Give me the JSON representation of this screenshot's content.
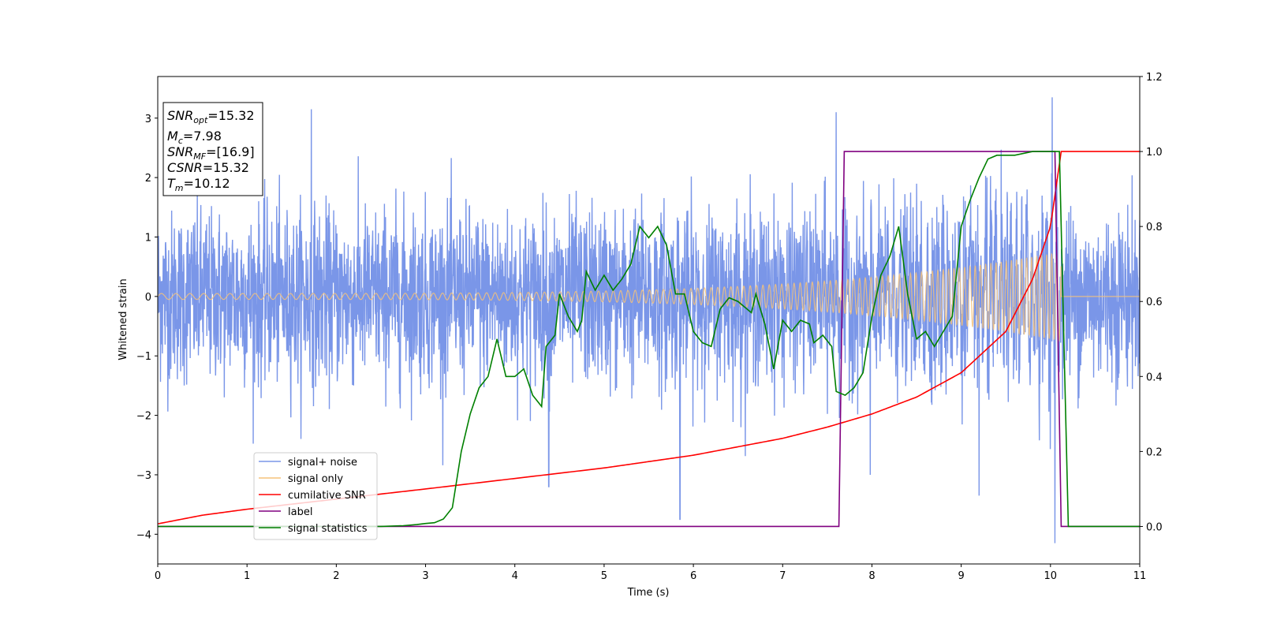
{
  "chart_data": {
    "type": "line",
    "title": "",
    "xlabel": "Time (s)",
    "ylabel": "Whitened strain",
    "xlim": [
      0,
      11
    ],
    "ylim": [
      -4.5,
      3.7
    ],
    "y2lim": [
      -0.1,
      1.2
    ],
    "x_ticks": [
      "0",
      "1",
      "2",
      "3",
      "4",
      "5",
      "6",
      "7",
      "8",
      "9",
      "10",
      "11"
    ],
    "y_ticks": [
      "−4",
      "−3",
      "−2",
      "−1",
      "0",
      "1",
      "2",
      "3"
    ],
    "y2_ticks": [
      "0.0",
      "0.2",
      "0.4",
      "0.6",
      "0.8",
      "1.0",
      "1.2"
    ],
    "grid": false,
    "legend_position": "lower-left",
    "info_box": {
      "snr_opt": {
        "base": "SNR",
        "sub": "opt",
        "value": "=15.32"
      },
      "mc": {
        "base": "M",
        "sub": "c",
        "value": "=7.98"
      },
      "snr_mf": {
        "base": "SNR",
        "sub": "MF",
        "value": "=[16.9]"
      },
      "csnr": {
        "base": "CSNR",
        "value": "=15.32"
      },
      "tm": {
        "base": "T",
        "sub": "m",
        "value": "=10.12"
      }
    },
    "series": [
      {
        "name": "signal+ noise",
        "axis": "left",
        "color": "#7a96e8",
        "description_points": "dense noise, amplitude roughly ±1.7 with spikes to ±3.3",
        "noise_amplitude": 1.0,
        "peaks": [
          [
            1.72,
            3.15
          ],
          [
            7.6,
            3.1
          ],
          [
            10.02,
            3.35
          ],
          [
            10.05,
            -4.15
          ],
          [
            5.85,
            -3.75
          ],
          [
            7.98,
            -3.0
          ],
          [
            9.2,
            -3.35
          ],
          [
            4.38,
            -3.2
          ]
        ]
      },
      {
        "name": "signal only",
        "axis": "left",
        "color": "#f5c27a",
        "chirp_start": 0,
        "chirp_end": 10.12,
        "amp_start": 0.05,
        "amp_end": 0.75
      },
      {
        "name": "cumilative SNR",
        "axis": "right",
        "color": "#ff0000",
        "points": [
          [
            0,
            0.007
          ],
          [
            0.5,
            0.03
          ],
          [
            1,
            0.046
          ],
          [
            2,
            0.073
          ],
          [
            3,
            0.1
          ],
          [
            4,
            0.128
          ],
          [
            5,
            0.156
          ],
          [
            6,
            0.19
          ],
          [
            7,
            0.235
          ],
          [
            7.5,
            0.265
          ],
          [
            8,
            0.3
          ],
          [
            8.5,
            0.345
          ],
          [
            9,
            0.41
          ],
          [
            9.5,
            0.52
          ],
          [
            9.8,
            0.66
          ],
          [
            10,
            0.8
          ],
          [
            10.12,
            1.0
          ],
          [
            11,
            1.0
          ]
        ]
      },
      {
        "name": "label",
        "axis": "right",
        "color": "#800080",
        "points": [
          [
            0,
            0.0
          ],
          [
            7.63,
            0.0
          ],
          [
            7.69,
            1.0
          ],
          [
            10.05,
            1.0
          ],
          [
            10.12,
            0.0
          ],
          [
            11,
            0.0
          ]
        ]
      },
      {
        "name": "signal statistics",
        "axis": "right",
        "color": "#008000",
        "points": [
          [
            0,
            0.0
          ],
          [
            2.5,
            0.0
          ],
          [
            2.75,
            0.002
          ],
          [
            2.9,
            0.005
          ],
          [
            3.0,
            0.008
          ],
          [
            3.1,
            0.01
          ],
          [
            3.2,
            0.02
          ],
          [
            3.3,
            0.05
          ],
          [
            3.4,
            0.2
          ],
          [
            3.5,
            0.3
          ],
          [
            3.6,
            0.37
          ],
          [
            3.7,
            0.4
          ],
          [
            3.8,
            0.5
          ],
          [
            3.9,
            0.4
          ],
          [
            4.0,
            0.4
          ],
          [
            4.1,
            0.42
          ],
          [
            4.2,
            0.35
          ],
          [
            4.3,
            0.32
          ],
          [
            4.35,
            0.48
          ],
          [
            4.45,
            0.51
          ],
          [
            4.5,
            0.62
          ],
          [
            4.6,
            0.56
          ],
          [
            4.7,
            0.52
          ],
          [
            4.75,
            0.55
          ],
          [
            4.8,
            0.68
          ],
          [
            4.9,
            0.63
          ],
          [
            5.0,
            0.67
          ],
          [
            5.1,
            0.63
          ],
          [
            5.2,
            0.66
          ],
          [
            5.3,
            0.7
          ],
          [
            5.4,
            0.8
          ],
          [
            5.5,
            0.77
          ],
          [
            5.6,
            0.8
          ],
          [
            5.7,
            0.75
          ],
          [
            5.8,
            0.62
          ],
          [
            5.9,
            0.62
          ],
          [
            6.0,
            0.52
          ],
          [
            6.1,
            0.49
          ],
          [
            6.2,
            0.48
          ],
          [
            6.3,
            0.58
          ],
          [
            6.4,
            0.61
          ],
          [
            6.5,
            0.6
          ],
          [
            6.55,
            0.59
          ],
          [
            6.65,
            0.57
          ],
          [
            6.7,
            0.62
          ],
          [
            6.8,
            0.54
          ],
          [
            6.9,
            0.42
          ],
          [
            7.0,
            0.55
          ],
          [
            7.1,
            0.52
          ],
          [
            7.2,
            0.55
          ],
          [
            7.3,
            0.54
          ],
          [
            7.35,
            0.49
          ],
          [
            7.45,
            0.51
          ],
          [
            7.55,
            0.48
          ],
          [
            7.6,
            0.36
          ],
          [
            7.7,
            0.35
          ],
          [
            7.8,
            0.37
          ],
          [
            7.9,
            0.41
          ],
          [
            8.0,
            0.56
          ],
          [
            8.1,
            0.67
          ],
          [
            8.2,
            0.72
          ],
          [
            8.3,
            0.8
          ],
          [
            8.4,
            0.62
          ],
          [
            8.5,
            0.5
          ],
          [
            8.6,
            0.52
          ],
          [
            8.7,
            0.48
          ],
          [
            8.8,
            0.52
          ],
          [
            8.9,
            0.56
          ],
          [
            9.0,
            0.8
          ],
          [
            9.1,
            0.87
          ],
          [
            9.2,
            0.93
          ],
          [
            9.3,
            0.98
          ],
          [
            9.4,
            0.99
          ],
          [
            9.6,
            0.99
          ],
          [
            9.8,
            1.0
          ],
          [
            10.0,
            1.0
          ],
          [
            10.1,
            1.0
          ],
          [
            10.2,
            0.0
          ],
          [
            11,
            0.0
          ]
        ]
      }
    ]
  }
}
